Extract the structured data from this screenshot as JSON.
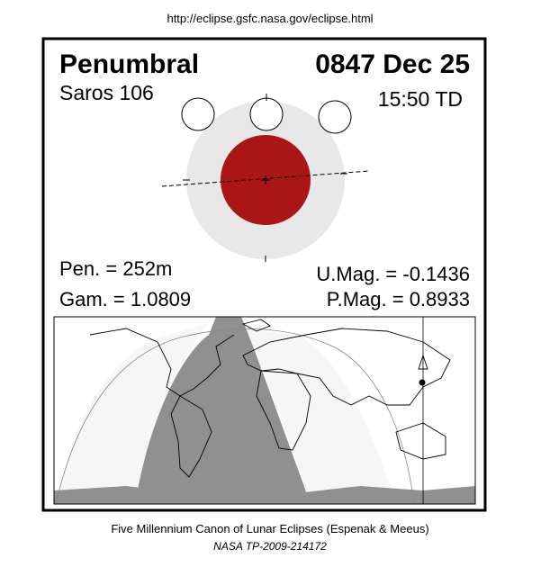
{
  "url": "http://eclipse.gsfc.nasa.gov/eclipse.html",
  "header": {
    "type": "Penumbral",
    "date": "0847 Dec 25",
    "saros": "Saros 106",
    "time": "15:50 TD"
  },
  "parameters": {
    "pen": "Pen. = 252m",
    "gam": "Gam. = 1.0809",
    "umag": "U.Mag. = -0.1436",
    "pmag": "P.Mag. = 0.8933"
  },
  "footer": {
    "canon": "Five Millennium Canon of Lunar Eclipses (Espenak & Meeus)",
    "publication": "NASA TP-2009-214172"
  }
}
